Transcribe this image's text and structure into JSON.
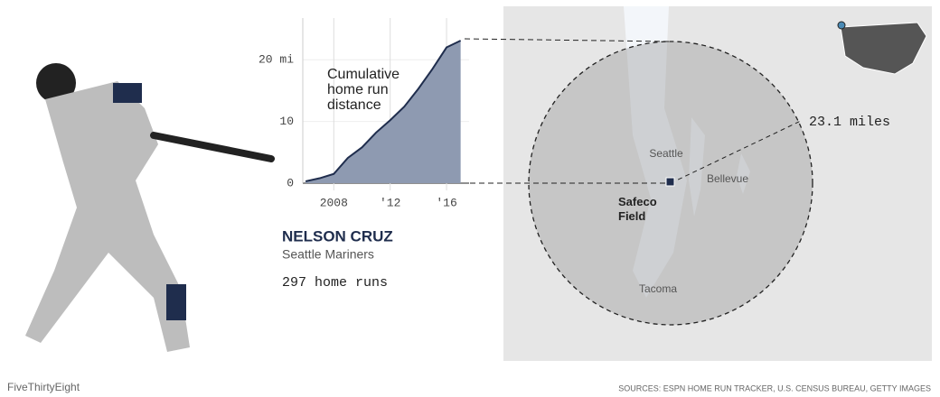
{
  "chart_data": {
    "type": "area",
    "title": "Cumulative home run distance",
    "x": [
      2006,
      2007,
      2008,
      2009,
      2010,
      2011,
      2012,
      2013,
      2014,
      2015,
      2016,
      2017
    ],
    "values": [
      0.3,
      0.8,
      1.5,
      4.1,
      5.8,
      8.2,
      10.2,
      12.4,
      15.3,
      18.5,
      22.0,
      23.1
    ],
    "color": "#8e9ab1",
    "line_color": "#1f2d4d",
    "xlim": [
      2005.8,
      2017.6
    ],
    "ylim": [
      0,
      25
    ],
    "xticks": [
      2008,
      {
        "value": 2012,
        "label": "'12"
      },
      {
        "value": 2016,
        "label": "'16"
      }
    ],
    "yticks": [
      0,
      10,
      {
        "value": 20,
        "label": "20 mi"
      }
    ],
    "grid": true
  },
  "player": {
    "name": "NELSON CRUZ",
    "team": "Seattle Mariners",
    "home_runs": "297 home runs"
  },
  "map": {
    "radius_label": "23.1 miles",
    "places": [
      "Seattle",
      "Bellevue",
      "Safeco Field",
      "Tacoma"
    ]
  },
  "footer": {
    "brand": "FiveThirtyEight",
    "sources": "SOURCES: ESPN HOME RUN TRACKER, U.S. CENSUS BUREAU, GETTY IMAGES"
  }
}
